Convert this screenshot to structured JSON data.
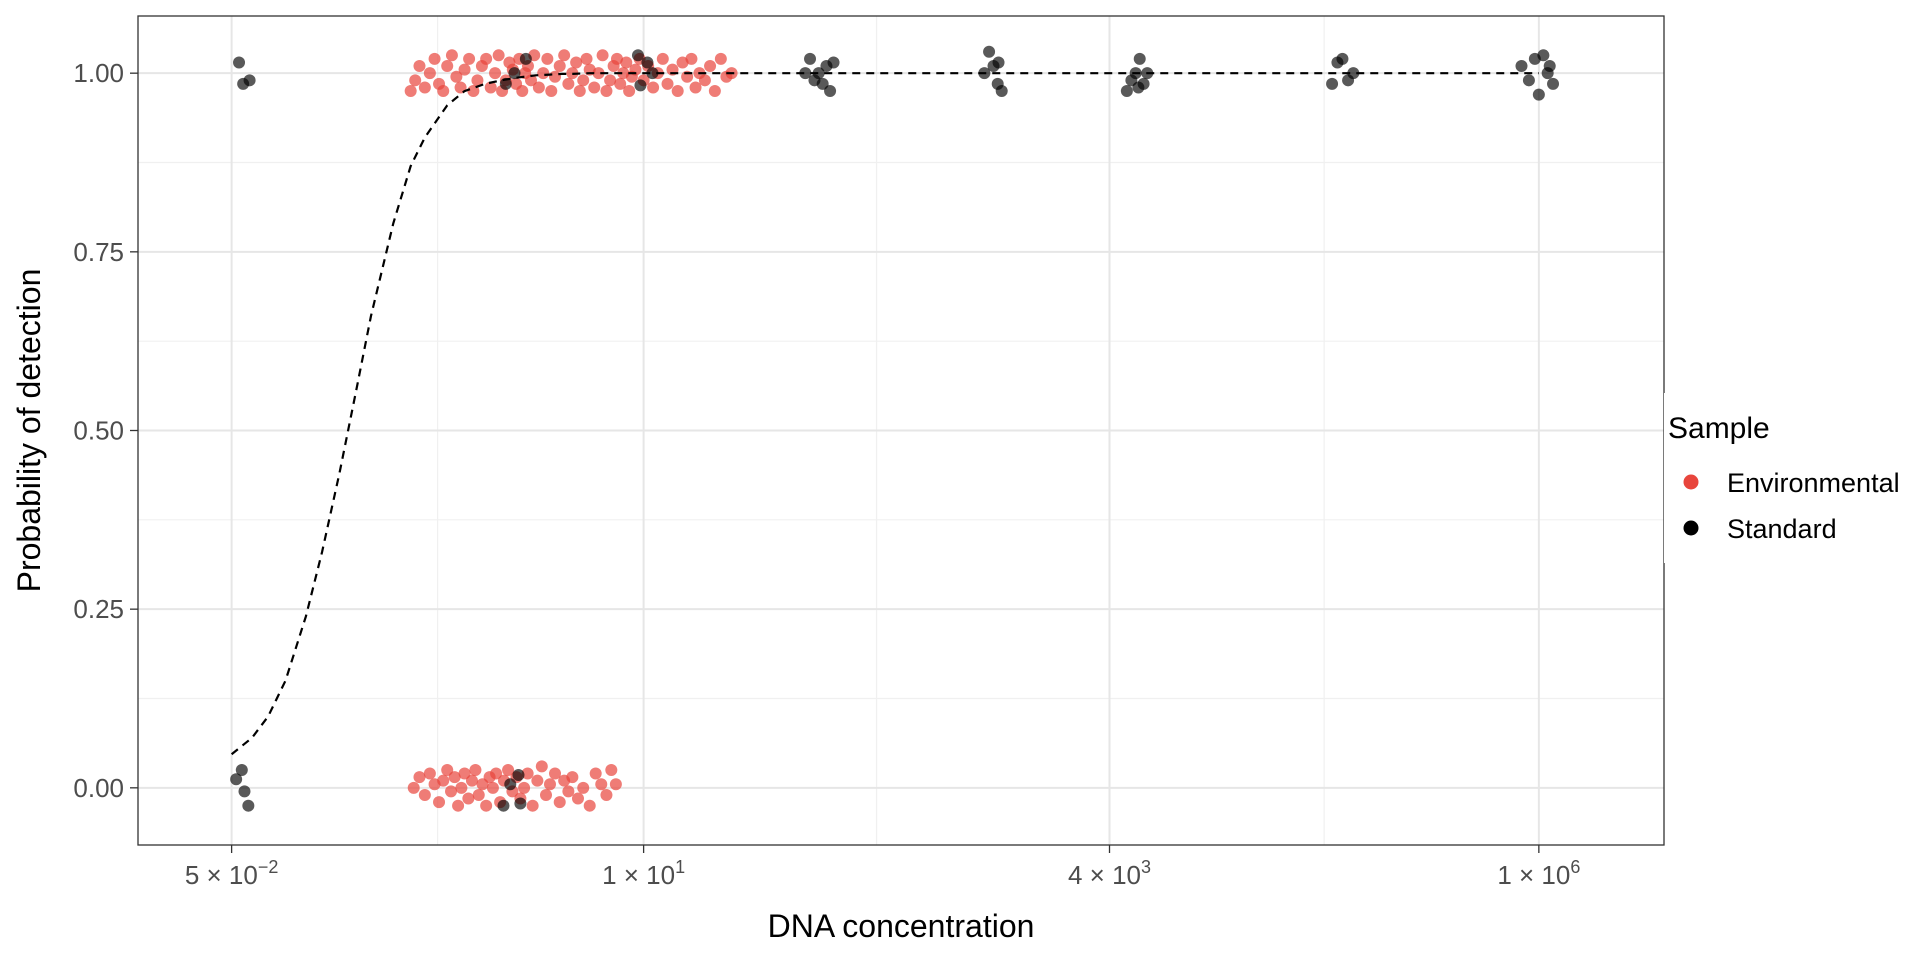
{
  "chart_data": {
    "type": "scatter",
    "title": "",
    "xlabel": "DNA concentration",
    "ylabel": "Probability of detection",
    "x_scale": "log10",
    "xlim": [
      0.015,
      5000000
    ],
    "ylim": [
      -0.08,
      1.08
    ],
    "grid": true,
    "x_ticks": [
      {
        "value": 0.05,
        "mantissa": "5",
        "exponent": "−2"
      },
      {
        "value": 10,
        "mantissa": "1",
        "exponent": "1"
      },
      {
        "value": 4000,
        "mantissa": "4",
        "exponent": "3"
      },
      {
        "value": 1000000,
        "mantissa": "1",
        "exponent": "6"
      }
    ],
    "y_ticks": [
      {
        "value": 0.0,
        "label": "0.00"
      },
      {
        "value": 0.25,
        "label": "0.25"
      },
      {
        "value": 0.5,
        "label": "0.50"
      },
      {
        "value": 0.75,
        "label": "0.75"
      },
      {
        "value": 1.0,
        "label": "1.00"
      }
    ],
    "legend": {
      "title": "Sample",
      "position": "right",
      "entries": [
        {
          "label": "Environmental",
          "color": "#e8453c"
        },
        {
          "label": "Standard",
          "color": "#000000"
        }
      ]
    },
    "fit_curve": {
      "style": "dashed",
      "color": "#000000",
      "x": [
        0.05,
        0.065,
        0.08,
        0.1,
        0.13,
        0.16,
        0.2,
        0.25,
        0.3,
        0.4,
        0.5,
        0.6,
        0.8,
        1.0,
        1.3,
        1.6,
        2.0,
        2.5,
        3.0,
        3.5,
        4.0,
        5.0,
        6.0,
        8.0,
        10.0,
        1000000
      ],
      "y": [
        0.047,
        0.07,
        0.1,
        0.15,
        0.24,
        0.33,
        0.44,
        0.56,
        0.66,
        0.79,
        0.87,
        0.91,
        0.955,
        0.975,
        0.985,
        0.99,
        0.994,
        0.997,
        0.998,
        0.999,
        0.999,
        1.0,
        1.0,
        1.0,
        1.0,
        1.0
      ]
    },
    "series": [
      {
        "name": "Environmental",
        "color": "#e8453c",
        "opacity": 0.7,
        "points": [
          {
            "x": 0.5,
            "y": 0.975
          },
          {
            "x": 0.53,
            "y": 0.99
          },
          {
            "x": 0.56,
            "y": 1.01
          },
          {
            "x": 0.6,
            "y": 0.98
          },
          {
            "x": 0.64,
            "y": 1.0
          },
          {
            "x": 0.68,
            "y": 1.02
          },
          {
            "x": 0.72,
            "y": 0.985
          },
          {
            "x": 0.76,
            "y": 0.975
          },
          {
            "x": 0.8,
            "y": 1.01
          },
          {
            "x": 0.85,
            "y": 1.025
          },
          {
            "x": 0.9,
            "y": 0.995
          },
          {
            "x": 0.95,
            "y": 0.98
          },
          {
            "x": 1.0,
            "y": 1.005
          },
          {
            "x": 1.06,
            "y": 1.02
          },
          {
            "x": 1.12,
            "y": 0.975
          },
          {
            "x": 1.18,
            "y": 0.99
          },
          {
            "x": 1.25,
            "y": 1.01
          },
          {
            "x": 1.32,
            "y": 1.02
          },
          {
            "x": 1.4,
            "y": 0.98
          },
          {
            "x": 1.48,
            "y": 1.0
          },
          {
            "x": 1.55,
            "y": 1.025
          },
          {
            "x": 1.62,
            "y": 0.975
          },
          {
            "x": 1.7,
            "y": 0.99
          },
          {
            "x": 1.78,
            "y": 1.015
          },
          {
            "x": 1.86,
            "y": 1.005
          },
          {
            "x": 1.94,
            "y": 0.985
          },
          {
            "x": 2.02,
            "y": 1.02
          },
          {
            "x": 2.1,
            "y": 0.975
          },
          {
            "x": 2.18,
            "y": 1.0
          },
          {
            "x": 2.26,
            "y": 1.01
          },
          {
            "x": 2.35,
            "y": 0.99
          },
          {
            "x": 2.45,
            "y": 1.025
          },
          {
            "x": 2.6,
            "y": 0.98
          },
          {
            "x": 2.75,
            "y": 1.0
          },
          {
            "x": 2.9,
            "y": 1.02
          },
          {
            "x": 3.05,
            "y": 0.975
          },
          {
            "x": 3.2,
            "y": 0.995
          },
          {
            "x": 3.4,
            "y": 1.01
          },
          {
            "x": 3.6,
            "y": 1.025
          },
          {
            "x": 3.8,
            "y": 0.985
          },
          {
            "x": 4.0,
            "y": 1.0
          },
          {
            "x": 4.2,
            "y": 1.015
          },
          {
            "x": 4.4,
            "y": 0.975
          },
          {
            "x": 4.6,
            "y": 0.99
          },
          {
            "x": 4.8,
            "y": 1.02
          },
          {
            "x": 5.0,
            "y": 1.005
          },
          {
            "x": 5.3,
            "y": 0.98
          },
          {
            "x": 5.6,
            "y": 1.0
          },
          {
            "x": 5.9,
            "y": 1.025
          },
          {
            "x": 6.2,
            "y": 0.975
          },
          {
            "x": 6.5,
            "y": 0.99
          },
          {
            "x": 6.8,
            "y": 1.01
          },
          {
            "x": 7.1,
            "y": 1.02
          },
          {
            "x": 7.4,
            "y": 0.985
          },
          {
            "x": 7.7,
            "y": 1.0
          },
          {
            "x": 8.0,
            "y": 1.015
          },
          {
            "x": 8.3,
            "y": 0.975
          },
          {
            "x": 8.6,
            "y": 0.995
          },
          {
            "x": 9.0,
            "y": 1.005
          },
          {
            "x": 9.5,
            "y": 1.02
          },
          {
            "x": 10.0,
            "y": 0.99
          },
          {
            "x": 10.6,
            "y": 1.01
          },
          {
            "x": 11.3,
            "y": 0.98
          },
          {
            "x": 12.0,
            "y": 1.0
          },
          {
            "x": 12.8,
            "y": 1.02
          },
          {
            "x": 13.6,
            "y": 0.985
          },
          {
            "x": 14.5,
            "y": 1.005
          },
          {
            "x": 15.5,
            "y": 0.975
          },
          {
            "x": 16.5,
            "y": 1.015
          },
          {
            "x": 17.5,
            "y": 0.995
          },
          {
            "x": 18.5,
            "y": 1.02
          },
          {
            "x": 19.5,
            "y": 0.98
          },
          {
            "x": 20.5,
            "y": 1.0
          },
          {
            "x": 22.0,
            "y": 0.99
          },
          {
            "x": 23.5,
            "y": 1.01
          },
          {
            "x": 25.0,
            "y": 0.975
          },
          {
            "x": 27.0,
            "y": 1.02
          },
          {
            "x": 29.0,
            "y": 0.995
          },
          {
            "x": 31.0,
            "y": 1.0
          },
          {
            "x": 0.52,
            "y": 0.0
          },
          {
            "x": 0.56,
            "y": 0.015
          },
          {
            "x": 0.6,
            "y": -0.01
          },
          {
            "x": 0.64,
            "y": 0.02
          },
          {
            "x": 0.68,
            "y": 0.005
          },
          {
            "x": 0.72,
            "y": -0.02
          },
          {
            "x": 0.76,
            "y": 0.01
          },
          {
            "x": 0.8,
            "y": 0.025
          },
          {
            "x": 0.84,
            "y": -0.005
          },
          {
            "x": 0.88,
            "y": 0.015
          },
          {
            "x": 0.92,
            "y": -0.025
          },
          {
            "x": 0.96,
            "y": 0.0
          },
          {
            "x": 1.0,
            "y": 0.02
          },
          {
            "x": 1.05,
            "y": -0.015
          },
          {
            "x": 1.1,
            "y": 0.01
          },
          {
            "x": 1.15,
            "y": 0.025
          },
          {
            "x": 1.2,
            "y": -0.01
          },
          {
            "x": 1.26,
            "y": 0.005
          },
          {
            "x": 1.32,
            "y": -0.025
          },
          {
            "x": 1.38,
            "y": 0.015
          },
          {
            "x": 1.44,
            "y": 0.0
          },
          {
            "x": 1.5,
            "y": 0.02
          },
          {
            "x": 1.58,
            "y": -0.02
          },
          {
            "x": 1.66,
            "y": 0.01
          },
          {
            "x": 1.75,
            "y": 0.025
          },
          {
            "x": 1.85,
            "y": -0.005
          },
          {
            "x": 1.95,
            "y": 0.015
          },
          {
            "x": 2.05,
            "y": -0.015
          },
          {
            "x": 2.15,
            "y": 0.0
          },
          {
            "x": 2.25,
            "y": 0.02
          },
          {
            "x": 2.4,
            "y": -0.025
          },
          {
            "x": 2.55,
            "y": 0.01
          },
          {
            "x": 2.7,
            "y": 0.03
          },
          {
            "x": 2.85,
            "y": -0.01
          },
          {
            "x": 3.0,
            "y": 0.005
          },
          {
            "x": 3.2,
            "y": 0.02
          },
          {
            "x": 3.4,
            "y": -0.02
          },
          {
            "x": 3.6,
            "y": 0.01
          },
          {
            "x": 3.8,
            "y": -0.005
          },
          {
            "x": 4.0,
            "y": 0.015
          },
          {
            "x": 4.3,
            "y": -0.015
          },
          {
            "x": 4.6,
            "y": 0.0
          },
          {
            "x": 5.0,
            "y": -0.025
          },
          {
            "x": 5.4,
            "y": 0.02
          },
          {
            "x": 5.8,
            "y": 0.005
          },
          {
            "x": 6.2,
            "y": -0.01
          },
          {
            "x": 6.6,
            "y": 0.025
          },
          {
            "x": 7.0,
            "y": 0.005
          }
        ]
      },
      {
        "name": "Standard",
        "color": "#000000",
        "opacity": 0.65,
        "points": [
          {
            "x": 0.055,
            "y": 1.015
          },
          {
            "x": 0.058,
            "y": 0.985
          },
          {
            "x": 0.063,
            "y": 0.99
          },
          {
            "x": 0.053,
            "y": 0.012
          },
          {
            "x": 0.057,
            "y": 0.025
          },
          {
            "x": 0.059,
            "y": -0.005
          },
          {
            "x": 0.062,
            "y": -0.025
          },
          {
            "x": 1.7,
            "y": 0.985
          },
          {
            "x": 1.9,
            "y": 1.0
          },
          {
            "x": 2.2,
            "y": 1.02
          },
          {
            "x": 1.8,
            "y": 0.005
          },
          {
            "x": 2.0,
            "y": 0.018
          },
          {
            "x": 1.65,
            "y": -0.025
          },
          {
            "x": 2.05,
            "y": -0.022
          },
          {
            "x": 9.3,
            "y": 1.025
          },
          {
            "x": 9.6,
            "y": 0.983
          },
          {
            "x": 10.5,
            "y": 1.015
          },
          {
            "x": 11.2,
            "y": 1.0
          },
          {
            "x": 85,
            "y": 1.02
          },
          {
            "x": 90,
            "y": 0.99
          },
          {
            "x": 95,
            "y": 1.0
          },
          {
            "x": 100,
            "y": 0.985
          },
          {
            "x": 105,
            "y": 1.01
          },
          {
            "x": 110,
            "y": 0.975
          },
          {
            "x": 115,
            "y": 1.015
          },
          {
            "x": 80,
            "y": 1.0
          },
          {
            "x": 800,
            "y": 1.0
          },
          {
            "x": 850,
            "y": 1.03
          },
          {
            "x": 900,
            "y": 1.01
          },
          {
            "x": 950,
            "y": 0.985
          },
          {
            "x": 1000,
            "y": 0.975
          },
          {
            "x": 960,
            "y": 1.015
          },
          {
            "x": 5000,
            "y": 0.975
          },
          {
            "x": 5300,
            "y": 0.99
          },
          {
            "x": 5600,
            "y": 1.0
          },
          {
            "x": 5900,
            "y": 1.02
          },
          {
            "x": 6200,
            "y": 0.985
          },
          {
            "x": 6500,
            "y": 1.0
          },
          {
            "x": 5800,
            "y": 0.98
          },
          {
            "x": 70000,
            "y": 0.985
          },
          {
            "x": 75000,
            "y": 1.015
          },
          {
            "x": 80000,
            "y": 1.02
          },
          {
            "x": 86000,
            "y": 0.99
          },
          {
            "x": 92000,
            "y": 1.0
          },
          {
            "x": 800000,
            "y": 1.01
          },
          {
            "x": 880000,
            "y": 0.99
          },
          {
            "x": 950000,
            "y": 1.02
          },
          {
            "x": 1000000,
            "y": 0.97
          },
          {
            "x": 1060000,
            "y": 1.025
          },
          {
            "x": 1120000,
            "y": 1.0
          },
          {
            "x": 1200000,
            "y": 0.985
          },
          {
            "x": 1150000,
            "y": 1.01
          }
        ]
      }
    ]
  }
}
